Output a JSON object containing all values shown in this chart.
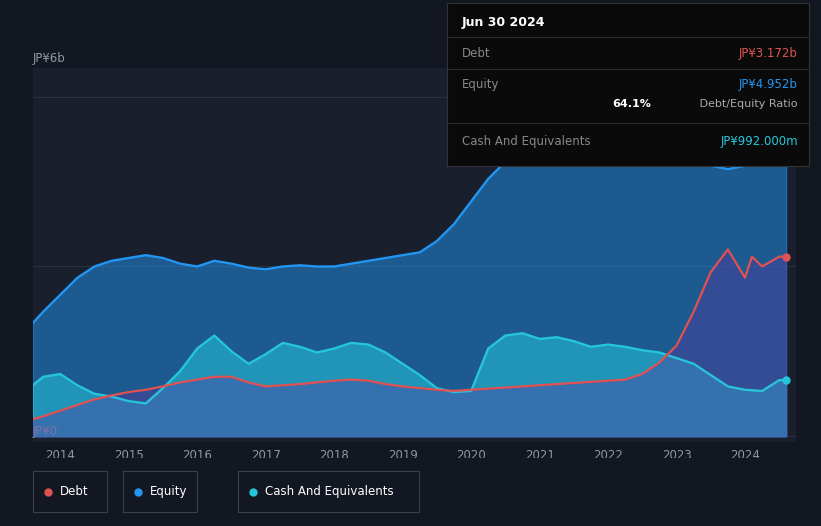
{
  "bg_color": "#131722",
  "plot_bg_color": "#1a1f2e",
  "title_date": "Jun 30 2024",
  "tooltip_debt_label": "Debt",
  "tooltip_debt_value": "JP¥3.172b",
  "tooltip_equity_label": "Equity",
  "tooltip_equity_value": "JP¥4.952b",
  "tooltip_ratio_bold": "64.1%",
  "tooltip_ratio_text": " Debt/Equity Ratio",
  "tooltip_cash_label": "Cash And Equivalents",
  "tooltip_cash_value": "JP¥992.000m",
  "debt_color": "#e05252",
  "equity_color": "#2196f3",
  "cash_color": "#26c6da",
  "ylabel_top": "JP¥6b",
  "ylabel_bottom": "JP¥0",
  "xlim_start": 2013.6,
  "xlim_end": 2024.75,
  "ylim_min": -0.1,
  "ylim_max": 6.5,
  "x_ticks": [
    2014,
    2015,
    2016,
    2017,
    2018,
    2019,
    2020,
    2021,
    2022,
    2023,
    2024
  ],
  "legend_items": [
    {
      "label": "Debt",
      "color": "#e05252"
    },
    {
      "label": "Equity",
      "color": "#2196f3"
    },
    {
      "label": "Cash And Equivalents",
      "color": "#26c6da"
    }
  ],
  "equity_x": [
    2013.6,
    2013.75,
    2014.0,
    2014.25,
    2014.5,
    2014.75,
    2015.0,
    2015.25,
    2015.5,
    2015.75,
    2016.0,
    2016.25,
    2016.5,
    2016.75,
    2017.0,
    2017.25,
    2017.5,
    2017.75,
    2018.0,
    2018.25,
    2018.5,
    2018.75,
    2019.0,
    2019.25,
    2019.5,
    2019.75,
    2020.0,
    2020.25,
    2020.5,
    2020.75,
    2021.0,
    2021.25,
    2021.5,
    2021.75,
    2022.0,
    2022.25,
    2022.5,
    2022.75,
    2023.0,
    2023.25,
    2023.5,
    2023.75,
    2024.0,
    2024.25,
    2024.5,
    2024.6
  ],
  "equity_y": [
    2.0,
    2.2,
    2.5,
    2.8,
    3.0,
    3.1,
    3.15,
    3.2,
    3.15,
    3.05,
    3.0,
    3.1,
    3.05,
    2.98,
    2.95,
    3.0,
    3.02,
    3.0,
    3.0,
    3.05,
    3.1,
    3.15,
    3.2,
    3.25,
    3.45,
    3.75,
    4.15,
    4.55,
    4.85,
    5.05,
    5.25,
    5.45,
    5.55,
    5.65,
    5.75,
    5.82,
    5.7,
    5.45,
    5.15,
    4.88,
    4.78,
    4.72,
    4.78,
    4.82,
    4.952,
    4.952
  ],
  "debt_x": [
    2013.6,
    2013.75,
    2014.0,
    2014.25,
    2014.5,
    2014.75,
    2015.0,
    2015.25,
    2015.5,
    2015.75,
    2016.0,
    2016.25,
    2016.5,
    2016.75,
    2017.0,
    2017.25,
    2017.5,
    2017.75,
    2018.0,
    2018.25,
    2018.5,
    2018.75,
    2019.0,
    2019.25,
    2019.5,
    2019.75,
    2020.0,
    2020.25,
    2020.5,
    2020.75,
    2021.0,
    2021.25,
    2021.5,
    2021.75,
    2022.0,
    2022.25,
    2022.5,
    2022.75,
    2023.0,
    2023.25,
    2023.5,
    2023.75,
    2024.0,
    2024.1,
    2024.25,
    2024.5,
    2024.6
  ],
  "debt_y": [
    0.3,
    0.35,
    0.45,
    0.55,
    0.65,
    0.72,
    0.78,
    0.82,
    0.88,
    0.95,
    1.0,
    1.05,
    1.05,
    0.95,
    0.88,
    0.9,
    0.92,
    0.95,
    0.98,
    1.0,
    0.98,
    0.92,
    0.88,
    0.85,
    0.82,
    0.8,
    0.82,
    0.84,
    0.86,
    0.88,
    0.9,
    0.92,
    0.94,
    0.96,
    0.98,
    1.0,
    1.1,
    1.3,
    1.6,
    2.2,
    2.9,
    3.3,
    2.8,
    3.172,
    3.0,
    3.172,
    3.172
  ],
  "cash_x": [
    2013.6,
    2013.75,
    2014.0,
    2014.25,
    2014.5,
    2014.75,
    2015.0,
    2015.25,
    2015.5,
    2015.75,
    2016.0,
    2016.25,
    2016.5,
    2016.75,
    2017.0,
    2017.25,
    2017.5,
    2017.75,
    2018.0,
    2018.25,
    2018.5,
    2018.75,
    2019.0,
    2019.25,
    2019.5,
    2019.75,
    2020.0,
    2020.25,
    2020.5,
    2020.75,
    2021.0,
    2021.25,
    2021.5,
    2021.75,
    2022.0,
    2022.25,
    2022.5,
    2022.75,
    2023.0,
    2023.25,
    2023.5,
    2023.75,
    2024.0,
    2024.25,
    2024.5,
    2024.6
  ],
  "cash_y": [
    0.9,
    1.05,
    1.1,
    0.9,
    0.75,
    0.7,
    0.62,
    0.58,
    0.85,
    1.15,
    1.55,
    1.78,
    1.5,
    1.28,
    1.45,
    1.65,
    1.58,
    1.48,
    1.55,
    1.65,
    1.62,
    1.48,
    1.28,
    1.08,
    0.85,
    0.78,
    0.8,
    1.55,
    1.78,
    1.82,
    1.72,
    1.75,
    1.68,
    1.58,
    1.62,
    1.58,
    1.52,
    1.48,
    1.38,
    1.28,
    1.08,
    0.88,
    0.82,
    0.8,
    0.992,
    0.992
  ]
}
